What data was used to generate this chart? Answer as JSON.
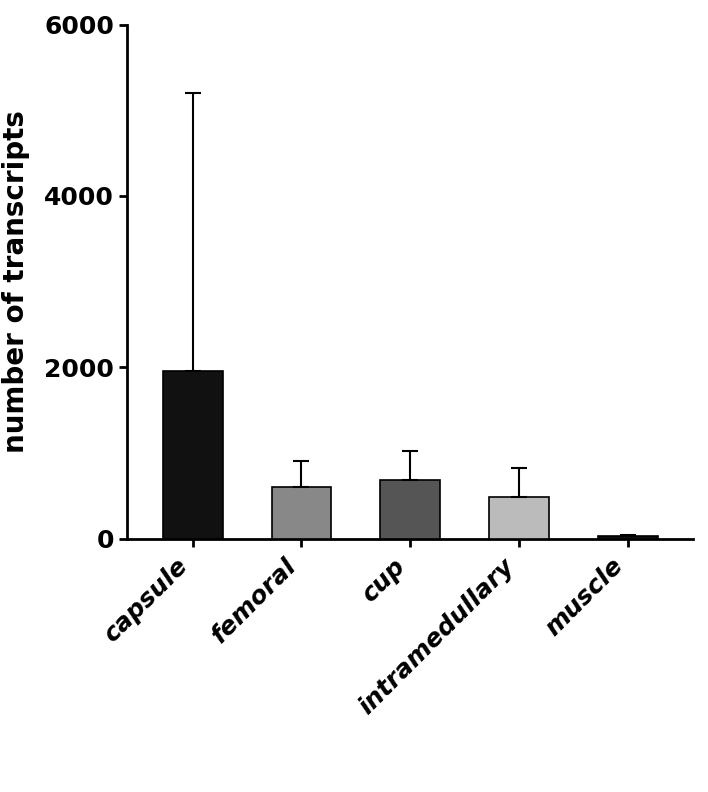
{
  "categories": [
    "capsule",
    "femoral",
    "cup",
    "intramedullary",
    "muscle"
  ],
  "values": [
    1950,
    600,
    680,
    480,
    25
  ],
  "errors": [
    3250,
    310,
    340,
    340,
    20
  ],
  "bar_colors": [
    "#111111",
    "#888888",
    "#555555",
    "#bbbbbb",
    "#111111"
  ],
  "bar_edgecolors": [
    "#000000",
    "#000000",
    "#000000",
    "#000000",
    "#000000"
  ],
  "ylabel": "number of transcripts",
  "ylim": [
    0,
    6000
  ],
  "yticks": [
    0,
    2000,
    4000,
    6000
  ],
  "bar_width": 0.55,
  "ylabel_fontsize": 20,
  "tick_fontsize": 18,
  "figure_facecolor": "#ffffff",
  "axes_facecolor": "#ffffff",
  "error_color": "#000000",
  "error_capsize": 6,
  "error_linewidth": 1.5
}
